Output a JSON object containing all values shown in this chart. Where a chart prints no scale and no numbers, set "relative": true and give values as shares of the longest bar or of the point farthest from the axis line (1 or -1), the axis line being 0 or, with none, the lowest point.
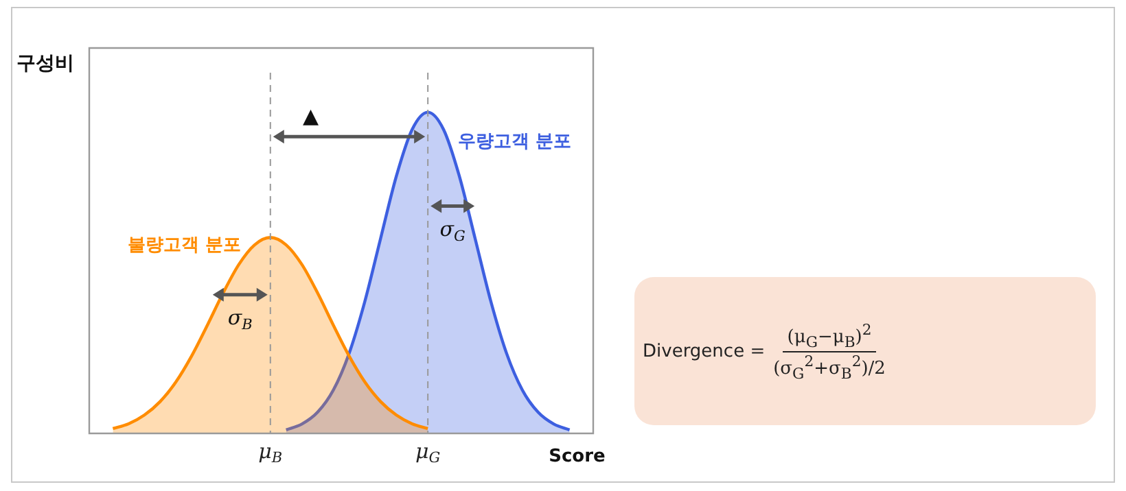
{
  "chart_data": {
    "type": "area",
    "relative": true,
    "ylabel": "구성비",
    "xlabel": "Score",
    "categories": [
      null,
      null,
      null,
      null,
      null,
      null,
      null,
      null,
      null,
      null,
      null,
      "μ$_{B}$",
      null,
      null,
      null,
      null,
      null,
      null,
      null,
      null,
      null,
      "μ$_{G}$",
      null,
      null,
      null,
      null,
      null,
      null,
      null,
      null,
      null,
      null
    ],
    "grid": false,
    "legend": false,
    "marker": "none",
    "series": [
      {
        "name": "불량고객 분포",
        "color": "#ff8c00",
        "values": [
          null,
          0.015,
          0.03,
          0.057,
          0.099,
          0.16,
          0.241,
          0.337,
          0.437,
          0.526,
          0.587,
          0.61,
          0.587,
          0.526,
          0.437,
          0.337,
          0.241,
          0.16,
          0.099,
          0.057,
          0.03,
          0.015,
          null,
          null,
          null,
          null,
          null,
          null,
          null,
          null,
          null,
          null
        ]
      },
      {
        "name": "우량고객 분포",
        "color": "#3d5fe0",
        "values": [
          null,
          null,
          null,
          null,
          null,
          null,
          null,
          null,
          null,
          null,
          null,
          null,
          0.011,
          0.029,
          0.066,
          0.135,
          0.249,
          0.411,
          0.607,
          0.801,
          0.946,
          1,
          0.946,
          0.801,
          0.607,
          0.411,
          0.249,
          0.135,
          0.066,
          0.029,
          0.011,
          null
        ]
      }
    ],
    "ref_lines": [
      {
        "axis": "x",
        "value": "μ$_{B}$",
        "color": "#999999",
        "line_style": "dashed"
      },
      {
        "axis": "x",
        "value": "μ$_{G}$",
        "color": "#999999",
        "line_style": "dashed"
      }
    ],
    "annotations": [
      "▲",
      "σ$_{B}$",
      "σ$_{G}$",
      "Divergence =",
      "(μ$_{G}$−μ$_{B}$)$^{2}$",
      "(σ$_{G}$$^{2}$+σ$_{B}$$^{2}$)/2"
    ]
  }
}
